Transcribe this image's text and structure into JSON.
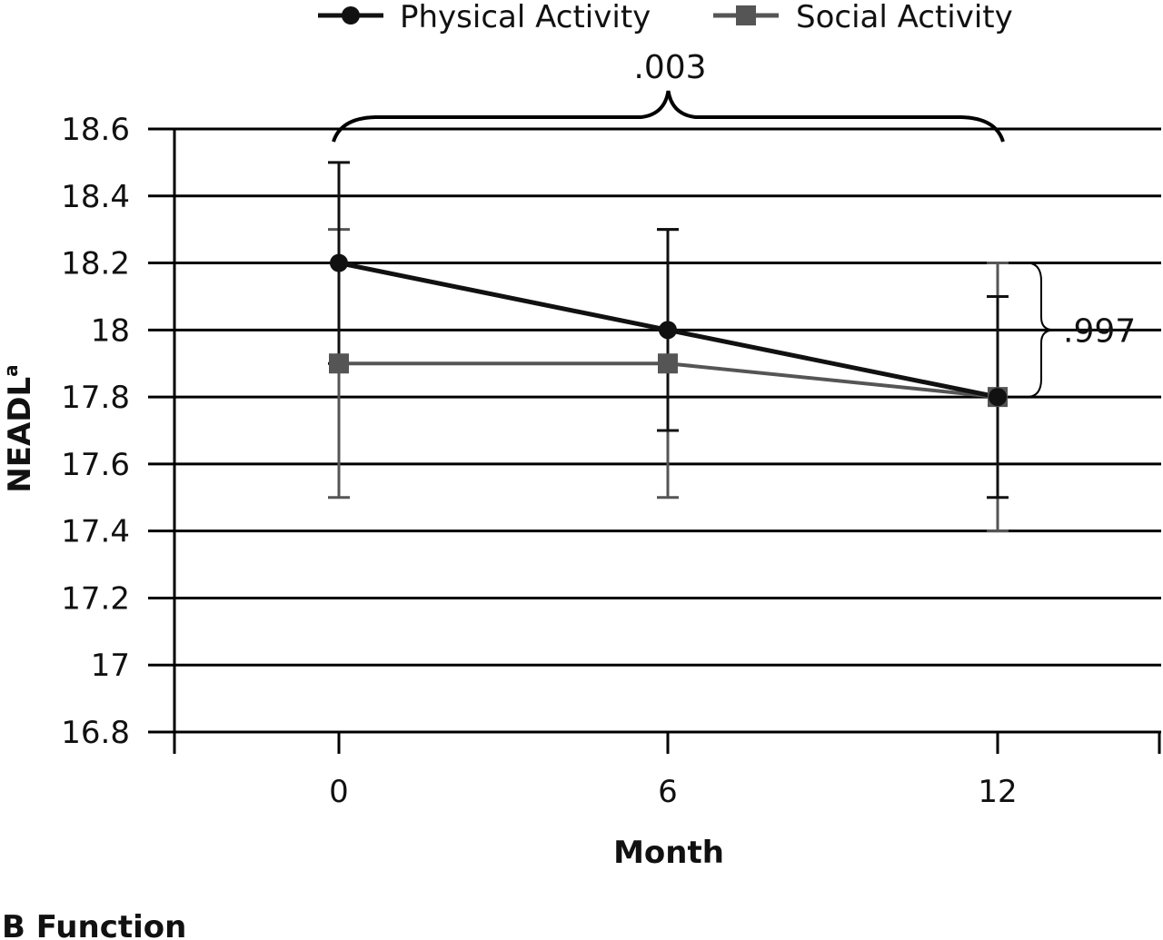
{
  "chart_data": {
    "type": "line",
    "panel_label": "B Function",
    "xlabel": "Month",
    "ylabel": "NEADL",
    "ylabel_superscript": "a",
    "ylim": [
      16.8,
      18.6
    ],
    "yticks": [
      16.8,
      17,
      17.2,
      17.4,
      17.6,
      17.8,
      18,
      18.2,
      18.4,
      18.6
    ],
    "ytick_labels": [
      "16.8",
      "17",
      "17.2",
      "17.4",
      "17.6",
      "17.8",
      "18",
      "18.2",
      "18.4",
      "18.6"
    ],
    "categories": [
      "0",
      "6",
      "12"
    ],
    "grid": true,
    "legend_position": "top",
    "series": [
      {
        "name": "Physical Activity",
        "marker": "circle",
        "color": "#111111",
        "values": [
          18.2,
          18.0,
          17.8
        ],
        "error_low": [
          17.9,
          17.7,
          17.5
        ],
        "error_high": [
          18.5,
          18.3,
          18.1
        ]
      },
      {
        "name": "Social Activity",
        "marker": "square",
        "color": "#555555",
        "values": [
          17.9,
          17.9,
          17.8
        ],
        "error_low": [
          17.5,
          17.5,
          17.4
        ],
        "error_high": [
          18.3,
          18.3,
          18.2
        ]
      }
    ],
    "annotations": [
      {
        "text": ".003",
        "type": "brace-top",
        "from": "0",
        "to": "12"
      },
      {
        "text": ".997",
        "type": "brace-right",
        "at": "12",
        "from_value": 17.8,
        "to_value": 18.2
      }
    ]
  }
}
